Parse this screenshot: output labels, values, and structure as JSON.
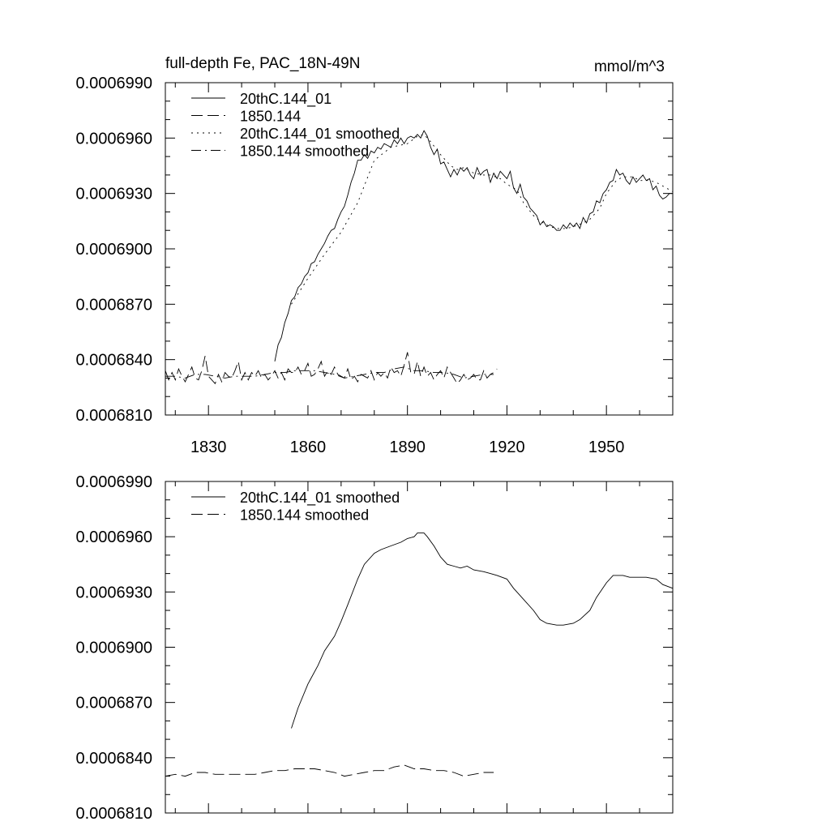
{
  "chart_data": [
    {
      "type": "line",
      "title": "full-depth Fe, PAC_18N-49N",
      "units": "mmol/m^3",
      "xlim": [
        1817,
        1970
      ],
      "ylim": [
        0.000681,
        0.000699
      ],
      "xticks": [
        1830,
        1860,
        1890,
        1920,
        1950
      ],
      "xtick_labels": [
        "1830",
        "1860",
        "1890",
        "1920",
        "1950"
      ],
      "yticks": [
        0.000681,
        0.000684,
        0.000687,
        0.00069,
        0.000693,
        0.000696,
        0.000699
      ],
      "ytick_labels": [
        "0.0006810",
        "0.0006840",
        "0.0006870",
        "0.0006900",
        "0.0006930",
        "0.0006960",
        "0.0006990"
      ],
      "legend_position": "top-left",
      "series": [
        {
          "name": "20thC.144_01",
          "style": "solid",
          "x": [
            1850,
            1851,
            1852,
            1853,
            1854,
            1855,
            1856,
            1857,
            1858,
            1859,
            1860,
            1861,
            1862,
            1863,
            1864,
            1865,
            1866,
            1867,
            1868,
            1869,
            1870,
            1871,
            1872,
            1873,
            1874,
            1875,
            1876,
            1877,
            1878,
            1879,
            1880,
            1881,
            1882,
            1883,
            1884,
            1885,
            1886,
            1887,
            1888,
            1889,
            1890,
            1891,
            1892,
            1893,
            1894,
            1895,
            1896,
            1897,
            1898,
            1899,
            1900,
            1901,
            1902,
            1903,
            1904,
            1905,
            1906,
            1907,
            1908,
            1909,
            1910,
            1911,
            1912,
            1913,
            1914,
            1915,
            1916,
            1917,
            1918,
            1919,
            1920,
            1921,
            1922,
            1923,
            1924,
            1925,
            1926,
            1927,
            1928,
            1929,
            1930,
            1931,
            1932,
            1933,
            1934,
            1935,
            1936,
            1937,
            1938,
            1939,
            1940,
            1941,
            1942,
            1943,
            1944,
            1945,
            1946,
            1947,
            1948,
            1949,
            1950,
            1951,
            1952,
            1953,
            1954,
            1955,
            1956,
            1957,
            1958,
            1959,
            1960,
            1961,
            1962,
            1963,
            1964,
            1965,
            1966,
            1967,
            1968,
            1969,
            1970
          ],
          "values": [
            0.0006839,
            0.0006848,
            0.0006852,
            0.000686,
            0.0006865,
            0.0006872,
            0.0006874,
            0.0006879,
            0.0006881,
            0.0006885,
            0.0006887,
            0.0006892,
            0.0006893,
            0.0006897,
            0.00069,
            0.0006903,
            0.0006907,
            0.000691,
            0.0006911,
            0.0006916,
            0.000692,
            0.0006923,
            0.0006929,
            0.0006936,
            0.0006941,
            0.0006948,
            0.0006948,
            0.0006951,
            0.0006949,
            0.0006953,
            0.0006952,
            0.0006955,
            0.0006954,
            0.0006957,
            0.0006956,
            0.0006955,
            0.0006959,
            0.0006957,
            0.000696,
            0.0006957,
            0.000696,
            0.0006961,
            0.000696,
            0.0006962,
            0.000696,
            0.0006964,
            0.0006961,
            0.0006955,
            0.0006951,
            0.0006954,
            0.0006946,
            0.0006947,
            0.0006943,
            0.0006939,
            0.0006943,
            0.000694,
            0.0006944,
            0.0006942,
            0.0006944,
            0.000694,
            0.0006938,
            0.0006944,
            0.000694,
            0.0006942,
            0.0006943,
            0.0006936,
            0.0006941,
            0.0006938,
            0.0006942,
            0.000694,
            0.0006938,
            0.0006942,
            0.0006933,
            0.000693,
            0.0006935,
            0.0006928,
            0.0006926,
            0.0006922,
            0.000692,
            0.0006918,
            0.0006913,
            0.0006915,
            0.0006912,
            0.0006913,
            0.0006912,
            0.000691,
            0.000691,
            0.0006913,
            0.0006911,
            0.0006914,
            0.0006912,
            0.0006914,
            0.0006911,
            0.0006917,
            0.0006914,
            0.0006919,
            0.000692,
            0.0006926,
            0.0006925,
            0.000693,
            0.0006932,
            0.0006936,
            0.0006937,
            0.0006943,
            0.000694,
            0.0006941,
            0.0006937,
            0.0006935,
            0.0006939,
            0.0006936,
            0.0006938,
            0.000694,
            0.0006937,
            0.0006938,
            0.0006932,
            0.0006934,
            0.0006929,
            0.0006927,
            0.0006928,
            0.000693,
            0.000693
          ]
        },
        {
          "name": "1850.144",
          "style": "dashed",
          "x": [
            1817,
            1818,
            1819,
            1820,
            1821,
            1822,
            1823,
            1824,
            1825,
            1826,
            1827,
            1828,
            1829,
            1830,
            1831,
            1832,
            1833,
            1834,
            1835,
            1836,
            1837,
            1838,
            1839,
            1840,
            1841,
            1842,
            1843,
            1844,
            1845,
            1846,
            1847,
            1848,
            1849,
            1850,
            1851,
            1852,
            1853,
            1854,
            1855,
            1856,
            1857,
            1858,
            1859,
            1860,
            1861,
            1862,
            1863,
            1864,
            1865,
            1866,
            1867,
            1868,
            1869,
            1870,
            1871,
            1872,
            1873,
            1874,
            1875,
            1876,
            1877,
            1878,
            1879,
            1880,
            1881,
            1882,
            1883,
            1884,
            1885,
            1886,
            1887,
            1888,
            1889,
            1890,
            1891,
            1892,
            1893,
            1894,
            1895,
            1896,
            1897,
            1898,
            1899,
            1900,
            1901,
            1902,
            1903,
            1904,
            1905,
            1906,
            1907,
            1908,
            1909,
            1910,
            1911,
            1912,
            1913,
            1914,
            1915,
            1916,
            1917
          ],
          "values": [
            0.0006834,
            0.0006829,
            0.0006833,
            0.0006829,
            0.0006835,
            0.0006831,
            0.0006828,
            0.0006832,
            0.0006836,
            0.000683,
            0.0006829,
            0.0006834,
            0.0006842,
            0.0006831,
            0.0006829,
            0.0006827,
            0.0006832,
            0.0006828,
            0.0006833,
            0.0006831,
            0.000683,
            0.0006834,
            0.0006839,
            0.0006829,
            0.0006833,
            0.0006829,
            0.0006833,
            0.0006831,
            0.0006834,
            0.000683,
            0.0006832,
            0.0006829,
            0.0006831,
            0.0006834,
            0.000683,
            0.0006833,
            0.0006829,
            0.0006835,
            0.0006833,
            0.0006833,
            0.0006836,
            0.0006832,
            0.0006834,
            0.0006838,
            0.0006831,
            0.0006832,
            0.0006835,
            0.0006839,
            0.0006831,
            0.0006834,
            0.0006832,
            0.0006836,
            0.0006832,
            0.0006831,
            0.000683,
            0.0006835,
            0.0006829,
            0.0006831,
            0.0006828,
            0.0006832,
            0.0006831,
            0.000683,
            0.0006834,
            0.0006829,
            0.0006833,
            0.0006831,
            0.0006833,
            0.000683,
            0.0006836,
            0.0006833,
            0.0006834,
            0.0006831,
            0.0006837,
            0.0006844,
            0.0006833,
            0.0006832,
            0.0006839,
            0.0006831,
            0.0006836,
            0.0006831,
            0.0006833,
            0.0006829,
            0.0006832,
            0.0006834,
            0.000683,
            0.0006836,
            0.0006833,
            0.000683,
            0.0006827,
            0.0006829,
            0.0006832,
            0.0006829,
            0.000683,
            0.0006832,
            0.0006829,
            0.0006829,
            0.0006834,
            0.000683,
            0.0006832,
            0.0006833,
            0.0006835
          ]
        },
        {
          "name": "20thC.144_01 smoothed",
          "style": "dotted",
          "x": [
            1855,
            1860,
            1865,
            1870,
            1875,
            1880,
            1885,
            1890,
            1893,
            1895,
            1897,
            1900,
            1903,
            1905,
            1907,
            1910,
            1913,
            1915,
            1918,
            1920,
            1923,
            1925,
            1928,
            1930,
            1933,
            1935,
            1938,
            1940,
            1943,
            1945,
            1948,
            1950,
            1953,
            1955,
            1958,
            1960,
            1963,
            1965,
            1968,
            1970
          ],
          "values": [
            0.000687,
            0.0006884,
            0.0006897,
            0.0006909,
            0.0006925,
            0.0006948,
            0.0006955,
            0.0006957,
            0.0006961,
            0.0006962,
            0.0006958,
            0.0006951,
            0.0006945,
            0.0006943,
            0.0006944,
            0.0006941,
            0.000694,
            0.000694,
            0.0006938,
            0.0006935,
            0.0006932,
            0.0006925,
            0.0006918,
            0.0006915,
            0.0006912,
            0.0006911,
            0.0006911,
            0.0006912,
            0.0006914,
            0.0006916,
            0.0006922,
            0.000693,
            0.0006937,
            0.0006939,
            0.0006939,
            0.0006937,
            0.0006937,
            0.0006936,
            0.0006933,
            0.0006931
          ]
        },
        {
          "name": "1850.144 smoothed",
          "style": "dashdot",
          "x": [
            1817,
            1820,
            1823,
            1826,
            1829,
            1832,
            1835,
            1838,
            1841,
            1844,
            1847,
            1850,
            1853,
            1856,
            1859,
            1862,
            1865,
            1868,
            1871,
            1874,
            1877,
            1880,
            1883,
            1886,
            1889,
            1892,
            1895,
            1898,
            1901,
            1904,
            1907,
            1910,
            1913,
            1916
          ],
          "values": [
            0.0006831,
            0.0006831,
            0.000683,
            0.0006832,
            0.0006832,
            0.0006831,
            0.000683,
            0.0006831,
            0.0006831,
            0.0006831,
            0.0006832,
            0.0006833,
            0.0006833,
            0.0006834,
            0.0006834,
            0.0006834,
            0.0006833,
            0.0006832,
            0.000683,
            0.0006831,
            0.0006832,
            0.0006833,
            0.0006833,
            0.0006835,
            0.0006836,
            0.0006834,
            0.0006834,
            0.0006833,
            0.0006833,
            0.0006832,
            0.000683,
            0.0006831,
            0.0006832,
            0.0006832
          ]
        }
      ]
    },
    {
      "type": "line",
      "title": "",
      "xlim": [
        1817,
        1970
      ],
      "ylim": [
        0.000681,
        0.000699
      ],
      "xticks": [
        1830,
        1860,
        1890,
        1920,
        1950
      ],
      "yticks": [
        0.000681,
        0.000684,
        0.000687,
        0.00069,
        0.000693,
        0.000696,
        0.000699
      ],
      "ytick_labels": [
        "0.0006810",
        "0.0006840",
        "0.0006870",
        "0.0006900",
        "0.0006930",
        "0.0006960",
        "0.0006990"
      ],
      "legend_position": "top-left",
      "series": [
        {
          "name": "20thC.144_01 smoothed",
          "style": "solid",
          "x": [
            1855,
            1857,
            1860,
            1863,
            1865,
            1868,
            1870,
            1872,
            1875,
            1877,
            1880,
            1882,
            1885,
            1888,
            1890,
            1892,
            1893,
            1894,
            1895,
            1896,
            1898,
            1900,
            1902,
            1904,
            1906,
            1908,
            1910,
            1913,
            1915,
            1917,
            1920,
            1922,
            1925,
            1928,
            1930,
            1932,
            1935,
            1937,
            1940,
            1942,
            1945,
            1947,
            1950,
            1952,
            1955,
            1957,
            1960,
            1962,
            1965,
            1967,
            1970
          ],
          "values": [
            0.0006856,
            0.0006867,
            0.000688,
            0.000689,
            0.0006898,
            0.0006906,
            0.0006914,
            0.0006923,
            0.0006937,
            0.0006945,
            0.0006951,
            0.0006953,
            0.0006955,
            0.0006957,
            0.0006959,
            0.000696,
            0.0006962,
            0.0006962,
            0.0006962,
            0.000696,
            0.0006955,
            0.0006949,
            0.0006945,
            0.0006944,
            0.0006943,
            0.0006944,
            0.0006942,
            0.0006941,
            0.000694,
            0.0006939,
            0.0006937,
            0.0006932,
            0.0006926,
            0.000692,
            0.0006915,
            0.0006913,
            0.0006912,
            0.0006912,
            0.0006913,
            0.0006915,
            0.000692,
            0.0006927,
            0.0006935,
            0.0006939,
            0.0006939,
            0.0006938,
            0.0006938,
            0.0006938,
            0.0006937,
            0.0006934,
            0.0006932
          ]
        },
        {
          "name": "1850.144 smoothed",
          "style": "dashed",
          "x": [
            1817,
            1820,
            1823,
            1826,
            1829,
            1832,
            1835,
            1838,
            1841,
            1844,
            1847,
            1850,
            1853,
            1856,
            1859,
            1862,
            1865,
            1868,
            1871,
            1874,
            1877,
            1880,
            1883,
            1886,
            1889,
            1892,
            1895,
            1898,
            1901,
            1904,
            1907,
            1910,
            1913,
            1916
          ],
          "values": [
            0.000683,
            0.0006831,
            0.000683,
            0.0006832,
            0.0006832,
            0.0006831,
            0.0006831,
            0.0006831,
            0.0006831,
            0.0006831,
            0.0006832,
            0.0006833,
            0.0006833,
            0.0006834,
            0.0006834,
            0.0006834,
            0.0006833,
            0.0006832,
            0.000683,
            0.0006831,
            0.0006832,
            0.0006833,
            0.0006833,
            0.0006835,
            0.0006836,
            0.0006834,
            0.0006834,
            0.0006833,
            0.0006833,
            0.0006832,
            0.000683,
            0.0006831,
            0.0006832,
            0.0006832
          ]
        }
      ]
    }
  ]
}
